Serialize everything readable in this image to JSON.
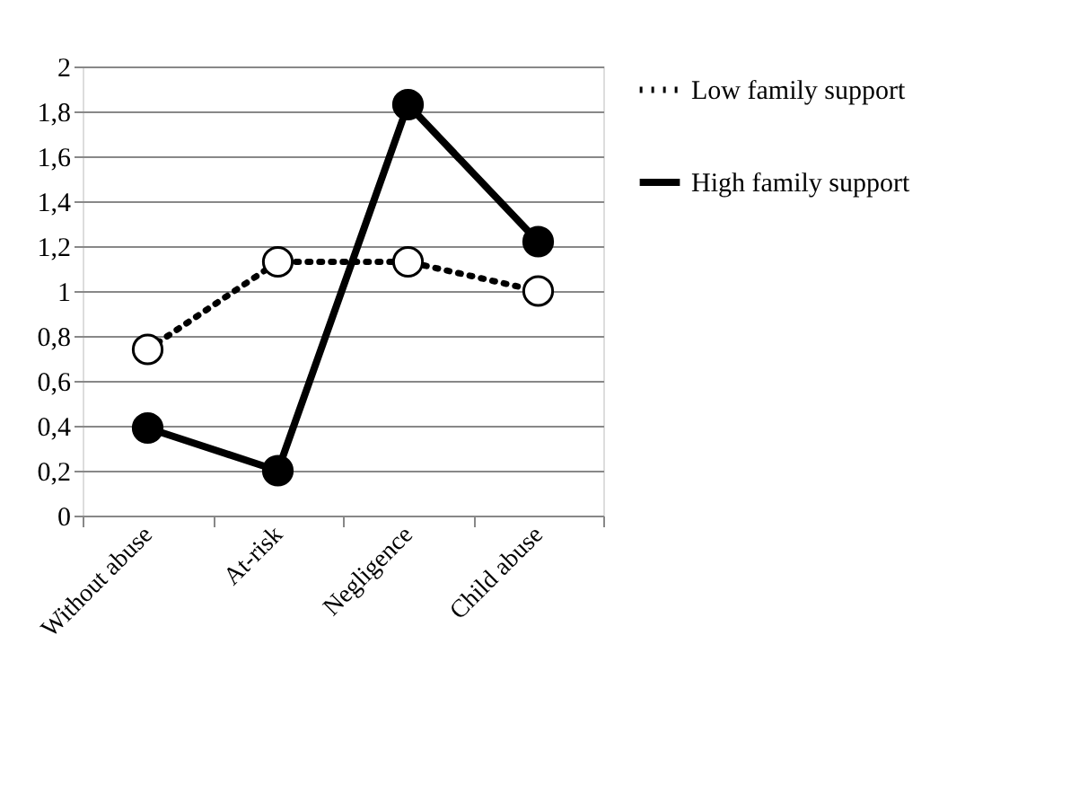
{
  "chart_data": {
    "type": "line",
    "categories": [
      "Without abuse",
      "At-risk",
      "Negligence",
      "Child abuse"
    ],
    "series": [
      {
        "name": "Low family support",
        "color": "#000000",
        "values": [
          0.74,
          1.13,
          1.13,
          1.0
        ],
        "line_style": "dotted"
      },
      {
        "name": "High family support",
        "color": "#000000",
        "values": [
          0.39,
          0.2,
          1.83,
          1.22
        ],
        "line_style": "solid"
      }
    ],
    "ylim": [
      0,
      2
    ],
    "yticks": [
      0,
      {
        "value": 0.2,
        "label": "0,2"
      },
      {
        "value": 0.4,
        "label": "0,4"
      },
      {
        "value": 0.6,
        "label": "0,6"
      },
      {
        "value": 0.8,
        "label": "0,8"
      },
      1,
      {
        "value": 1.2,
        "label": "1,2"
      },
      {
        "value": 1.4,
        "label": "1,4"
      },
      {
        "value": 1.6,
        "label": "1,6"
      },
      {
        "value": 1.8,
        "label": "1,8"
      },
      2
    ],
    "grid": "y",
    "legend": "right",
    "marker": "circle"
  }
}
